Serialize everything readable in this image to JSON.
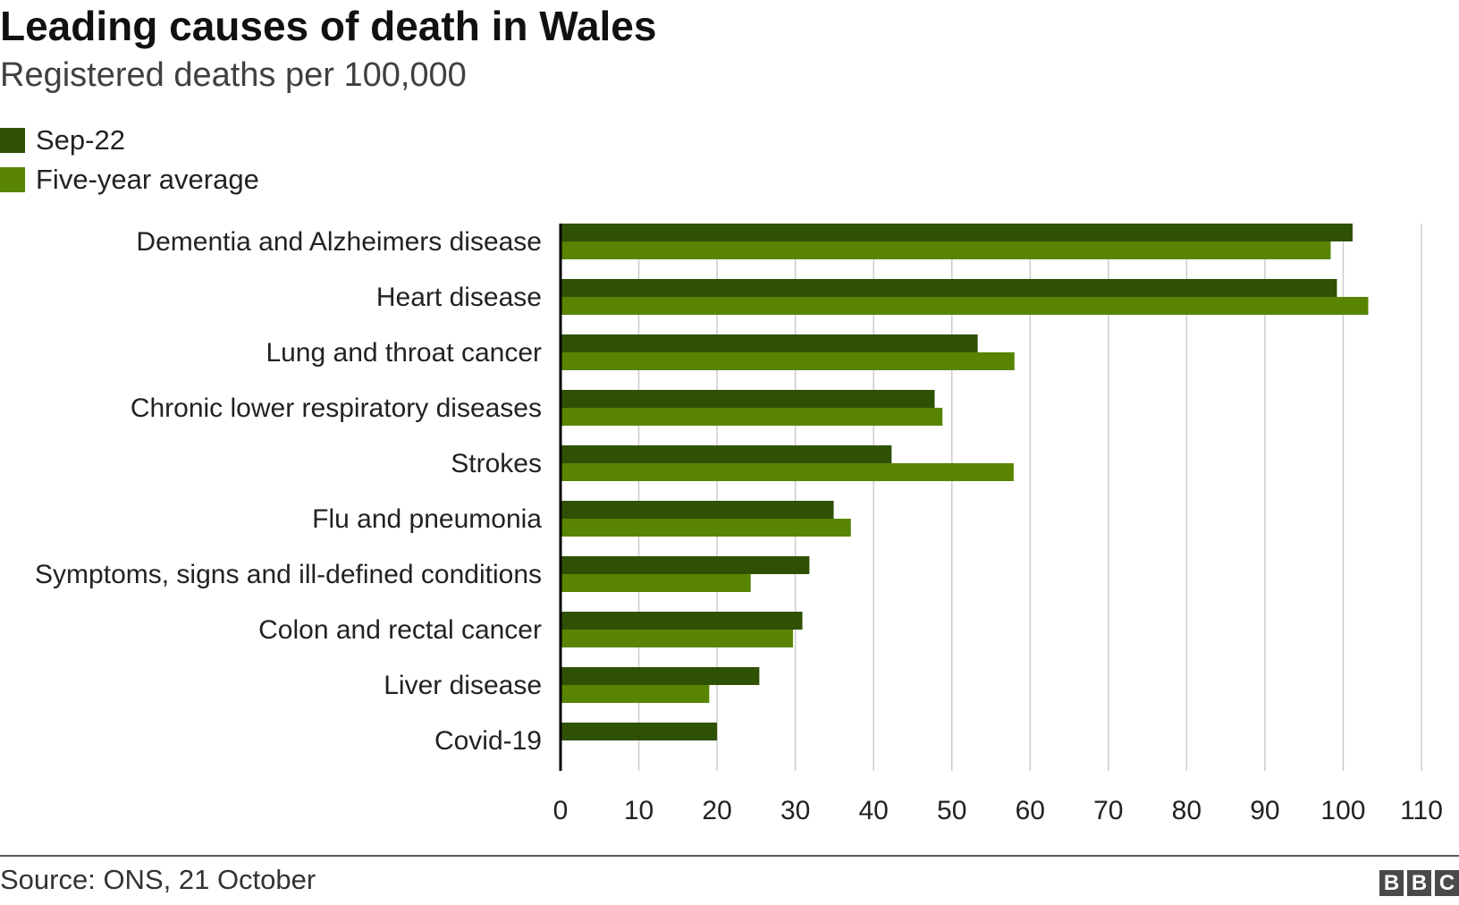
{
  "title": "Leading causes of death in Wales",
  "subtitle": "Registered deaths per 100,000",
  "legend": [
    {
      "label": "Sep-22",
      "color": "#2f5104"
    },
    {
      "label": "Five-year average",
      "color": "#588402"
    }
  ],
  "source": "Source: ONS, 21 October",
  "logo": {
    "letters": [
      "B",
      "B",
      "C"
    ]
  },
  "colors": {
    "grid": "#cccccc",
    "axis": "#000000",
    "text": "#222222"
  },
  "chart_data": {
    "type": "bar",
    "orientation": "horizontal",
    "categories": [
      "Dementia and Alzheimers disease",
      "Heart disease",
      "Lung and throat cancer",
      "Chronic lower respiratory diseases",
      "Strokes",
      "Flu and pneumonia",
      "Symptoms, signs and ill-defined conditions",
      "Colon and rectal cancer",
      "Liver disease",
      "Covid-19"
    ],
    "series": [
      {
        "name": "Sep-22",
        "values": [
          101.2,
          99.2,
          53.3,
          47.8,
          42.3,
          34.9,
          31.8,
          30.9,
          25.4,
          20.0
        ]
      },
      {
        "name": "Five-year average",
        "values": [
          98.4,
          103.2,
          58.0,
          48.8,
          57.9,
          37.1,
          24.3,
          29.7,
          19.0,
          null
        ]
      }
    ],
    "xlim": [
      0,
      110
    ],
    "xticks": [
      0,
      10,
      20,
      30,
      40,
      50,
      60,
      70,
      80,
      90,
      100,
      110
    ],
    "grid": true,
    "legend_position": "top-left"
  }
}
